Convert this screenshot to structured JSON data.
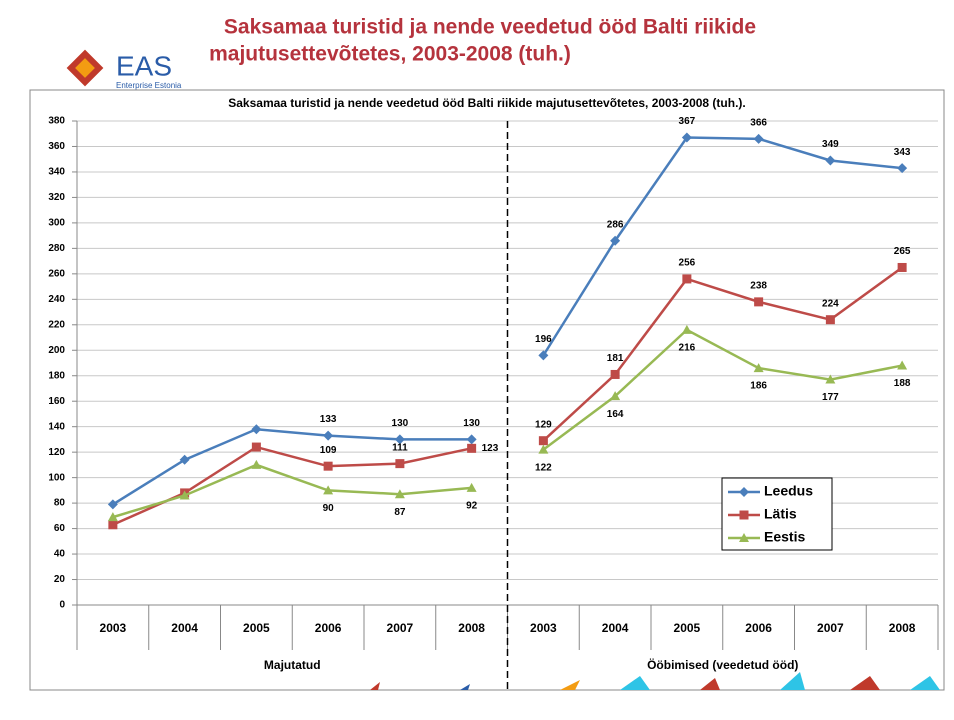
{
  "slide": {
    "title_lines": [
      "Saksamaa turistid ja nende veedetud ööd Balti riikide",
      "majutusettevõtetes, 2003-2008 (tuh.)"
    ],
    "logo": "EAS",
    "logo_subtitle": "Enterprise Estonia"
  },
  "chart_data": {
    "type": "line",
    "title": "Saksamaa turistid ja nende veedetud ööd Balti riikide majutusettevõtetes, 2003-2008 (tuh.).",
    "categories": [
      "2003",
      "2004",
      "2005",
      "2006",
      "2007",
      "2008",
      "2003",
      "2004",
      "2005",
      "2006",
      "2007",
      "2008"
    ],
    "groups": [
      {
        "label": "Majutatud",
        "size": 6
      },
      {
        "label": "Ööbimised (veedetud ööd)",
        "size": 6
      }
    ],
    "series": [
      {
        "name": "Leedus",
        "color": "#4a7ebb",
        "marker": "diamond",
        "values": [
          79,
          114,
          138,
          133,
          130,
          130,
          196,
          286,
          367,
          366,
          349,
          343
        ],
        "value_labels": [
          null,
          null,
          null,
          "133",
          "130",
          "130",
          "196",
          "286",
          "367",
          "366",
          "349",
          "343"
        ]
      },
      {
        "name": "Lätis",
        "color": "#be4b48",
        "marker": "square",
        "values": [
          63,
          88,
          124,
          109,
          111,
          123,
          129,
          181,
          256,
          238,
          224,
          265
        ],
        "value_labels": [
          null,
          null,
          null,
          "109",
          "111",
          "123",
          "129",
          "181",
          "256",
          "238",
          "224",
          "265"
        ]
      },
      {
        "name": "Eestis",
        "color": "#98b954",
        "marker": "triangle",
        "values": [
          69,
          86,
          110,
          90,
          87,
          92,
          122,
          164,
          216,
          186,
          177,
          188
        ],
        "value_labels": [
          null,
          null,
          null,
          "90",
          "87",
          "92",
          "122",
          "164",
          "216",
          "186",
          "177",
          "188"
        ]
      }
    ],
    "ylim": [
      0,
      380
    ],
    "yticks": [
      0,
      20,
      40,
      60,
      80,
      100,
      120,
      140,
      160,
      180,
      200,
      220,
      240,
      260,
      280,
      300,
      320,
      340,
      360,
      380
    ],
    "grid": true,
    "legend": "lower right"
  }
}
